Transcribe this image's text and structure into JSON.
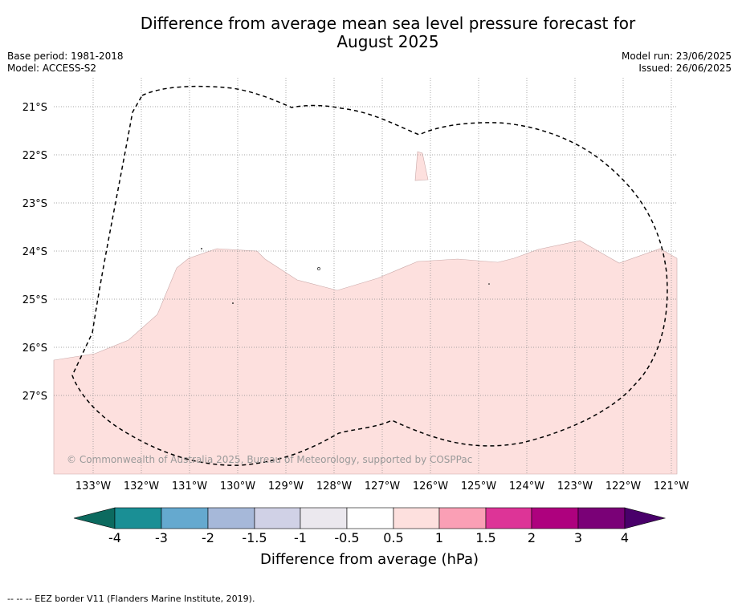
{
  "title_line1": "Difference from average mean sea level pressure forecast for",
  "title_line2": "August 2025",
  "base_period": "Base period: 1981-2018",
  "model": "Model: ACCESS-S2",
  "model_run": "Model run: 23/06/2025",
  "issued": "Issued: 26/06/2025",
  "copyright": "© Commonwealth of Australia 2025, Bureau of Meteorology, supported by COSPPac",
  "footnote": "--  --  -- EEZ border V11 (Flanders Marine Institute, 2019).",
  "map": {
    "latitude_labels": [
      "21°S",
      "22°S",
      "23°S",
      "24°S",
      "25°S",
      "26°S",
      "27°S"
    ],
    "longitude_labels": [
      "133°W",
      "132°W",
      "131°W",
      "130°W",
      "129°W",
      "128°W",
      "127°W",
      "126°W",
      "125°W",
      "124°W",
      "123°W",
      "122°W",
      "121°W"
    ],
    "anomaly_fill_category": "0.5 to 1",
    "anomaly_fill_color": "#fde0de",
    "eez_border_style": "dashed black"
  },
  "colorbar": {
    "label": "Difference from average (hPa)",
    "ticks": [
      "-4",
      "-3",
      "-2",
      "-1.5",
      "-1",
      "-0.5",
      "0.5",
      "1",
      "1.5",
      "2",
      "3",
      "4"
    ],
    "colors": [
      "#0c6a5f",
      "#1a8f95",
      "#65a9cf",
      "#a6b8d9",
      "#d0d1e6",
      "#ebe8ee",
      "#ffffff",
      "#fde0de",
      "#fa9fb5",
      "#dd3497",
      "#ae017e",
      "#7a0177",
      "#49006a"
    ]
  }
}
